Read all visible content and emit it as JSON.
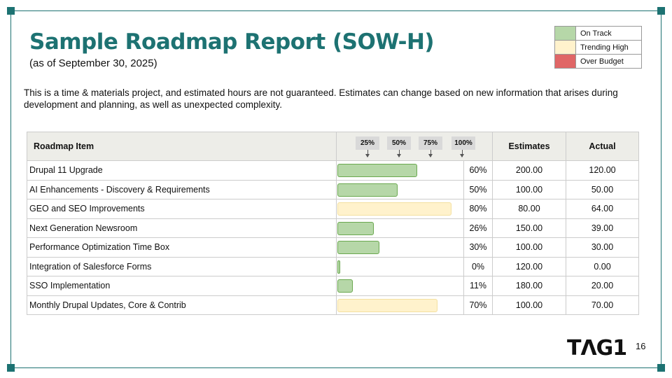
{
  "title": "Sample Roadmap Report (SOW-H)",
  "subtitle": "(as of September 30, 2025)",
  "description": "This is a time & materials project, and estimated hours are not guaranteed. Estimates can change based on new information that arises during development and planning, as well as unexpected complexity.",
  "legend": [
    {
      "label": "On Track",
      "color": "#b6d7a8"
    },
    {
      "label": "Trending High",
      "color": "#fff2cc"
    },
    {
      "label": "Over Budget",
      "color": "#e06666"
    }
  ],
  "table": {
    "headers": {
      "item": "Roadmap Item",
      "estimates": "Estimates",
      "actual": "Actual"
    },
    "markers": [
      "25%",
      "50%",
      "75%",
      "100%"
    ],
    "rows": [
      {
        "item": "Drupal 11 Upgrade",
        "percent": "60%",
        "bar_fill": 66,
        "status": "On Track",
        "estimates": "200.00",
        "actual": "120.00"
      },
      {
        "item": "AI Enhancements - Discovery & Requirements",
        "percent": "50%",
        "bar_fill": 50,
        "status": "On Track",
        "estimates": "100.00",
        "actual": "50.00"
      },
      {
        "item": "GEO and SEO Improvements",
        "percent": "80%",
        "bar_fill": 95,
        "status": "Trending High",
        "estimates": "80.00",
        "actual": "64.00"
      },
      {
        "item": "Next Generation Newsroom",
        "percent": "26%",
        "bar_fill": 30,
        "status": "On Track",
        "estimates": "150.00",
        "actual": "39.00"
      },
      {
        "item": "Performance Optimization Time Box",
        "percent": "30%",
        "bar_fill": 35,
        "status": "On Track",
        "estimates": "100.00",
        "actual": "30.00"
      },
      {
        "item": "Integration of Salesforce Forms",
        "percent": "0%",
        "bar_fill": 2,
        "status": "On Track",
        "estimates": "120.00",
        "actual": "0.00"
      },
      {
        "item": "SSO Implementation",
        "percent": "11%",
        "bar_fill": 13,
        "status": "On Track",
        "estimates": "180.00",
        "actual": "20.00"
      },
      {
        "item": "Monthly Drupal Updates, Core & Contrib",
        "percent": "70%",
        "bar_fill": 83,
        "status": "Trending High",
        "estimates": "100.00",
        "actual": "70.00"
      }
    ]
  },
  "logo": "TAG1",
  "page_number": "16"
}
